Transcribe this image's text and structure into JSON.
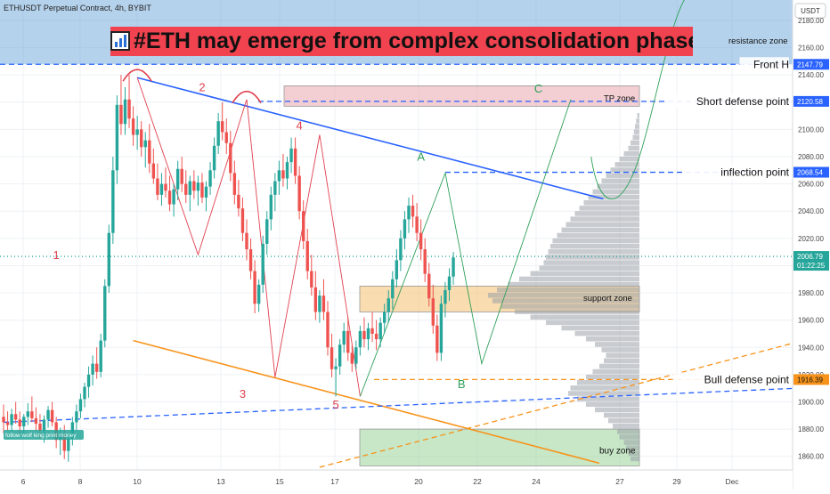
{
  "header": {
    "symbol_line": "ETHUSDT Perpetual Contract, 4h, BYBIT"
  },
  "banner": {
    "text": "#ETH may emerge from complex consolidation phase",
    "icon": "bar-chart-icon",
    "end_icon": "collision-icon"
  },
  "axis": {
    "currency": "USDT"
  },
  "watermark": "follow wolf king print money",
  "chart_data": {
    "type": "candlestick",
    "x_ticks": [
      "6",
      "8",
      "10",
      "13",
      "15",
      "17",
      "20",
      "22",
      "24",
      "27",
      "29",
      "Dec"
    ],
    "y_ticks": [
      1860,
      1880,
      1900,
      1920,
      1940,
      1960,
      1980,
      2000,
      2020,
      2040,
      2060,
      2080,
      2100,
      2120,
      2140,
      2160,
      2180
    ],
    "ylim": [
      1850,
      2195
    ],
    "price_labels": [
      {
        "value": "2147.79",
        "label": "Front H",
        "color": "#2962ff"
      },
      {
        "value": "2120.58",
        "label": "Short defense point",
        "color": "#2962ff"
      },
      {
        "value": "2068.54",
        "label": "inflection point",
        "color": "#2962ff"
      },
      {
        "value": "2006.79",
        "time": "01:22:25",
        "color": "#26a69a"
      },
      {
        "value": "1916.39",
        "label": "Bull defense point",
        "color": "#f7931a"
      }
    ],
    "zones": [
      {
        "label": "resistance zone",
        "from": 2147.79,
        "to": 2200,
        "color": "#5b9bd5"
      },
      {
        "label": "TP zone",
        "from": 2117,
        "to": 2132,
        "color": "#e8a0a8"
      },
      {
        "label": "support zone",
        "from": 1966,
        "to": 1985,
        "color": "#f5c47a"
      },
      {
        "label": "buy zone",
        "from": 1853,
        "to": 1880,
        "color": "#8fcf8f"
      }
    ],
    "wave_labels": [
      {
        "text": "1",
        "x": 13,
        "y": 2005,
        "color": "#e0404f"
      },
      {
        "text": "2",
        "x": 49,
        "y": 2128,
        "color": "#e0404f"
      },
      {
        "text": "3",
        "x": 59,
        "y": 1903,
        "color": "#e0404f"
      },
      {
        "text": "4",
        "x": 73,
        "y": 2100,
        "color": "#e0404f"
      },
      {
        "text": "5",
        "x": 82,
        "y": 1895,
        "color": "#e0404f"
      },
      {
        "text": "A",
        "x": 103,
        "y": 2077,
        "color": "#2ea05a"
      },
      {
        "text": "B",
        "x": 113,
        "y": 1910,
        "color": "#2ea05a"
      },
      {
        "text": "C",
        "x": 132,
        "y": 2127,
        "color": "#2ea05a"
      }
    ],
    "candles": [
      {
        "o": 1889,
        "h": 1898,
        "l": 1877,
        "c": 1885
      },
      {
        "o": 1885,
        "h": 1893,
        "l": 1879,
        "c": 1883
      },
      {
        "o": 1883,
        "h": 1895,
        "l": 1878,
        "c": 1891
      },
      {
        "o": 1891,
        "h": 1900,
        "l": 1884,
        "c": 1887
      },
      {
        "o": 1887,
        "h": 1893,
        "l": 1876,
        "c": 1882
      },
      {
        "o": 1882,
        "h": 1891,
        "l": 1875,
        "c": 1889
      },
      {
        "o": 1889,
        "h": 1899,
        "l": 1883,
        "c": 1893
      },
      {
        "o": 1893,
        "h": 1904,
        "l": 1885,
        "c": 1888
      },
      {
        "o": 1888,
        "h": 1896,
        "l": 1879,
        "c": 1884
      },
      {
        "o": 1884,
        "h": 1891,
        "l": 1873,
        "c": 1879
      },
      {
        "o": 1879,
        "h": 1890,
        "l": 1870,
        "c": 1887
      },
      {
        "o": 1887,
        "h": 1897,
        "l": 1881,
        "c": 1894
      },
      {
        "o": 1894,
        "h": 1900,
        "l": 1882,
        "c": 1885
      },
      {
        "o": 1885,
        "h": 1889,
        "l": 1866,
        "c": 1872
      },
      {
        "o": 1872,
        "h": 1881,
        "l": 1861,
        "c": 1876
      },
      {
        "o": 1876,
        "h": 1883,
        "l": 1858,
        "c": 1864
      },
      {
        "o": 1864,
        "h": 1877,
        "l": 1856,
        "c": 1873
      },
      {
        "o": 1873,
        "h": 1889,
        "l": 1868,
        "c": 1885
      },
      {
        "o": 1885,
        "h": 1898,
        "l": 1879,
        "c": 1893
      },
      {
        "o": 1893,
        "h": 1906,
        "l": 1888,
        "c": 1902
      },
      {
        "o": 1902,
        "h": 1914,
        "l": 1896,
        "c": 1911
      },
      {
        "o": 1911,
        "h": 1926,
        "l": 1903,
        "c": 1920
      },
      {
        "o": 1920,
        "h": 1934,
        "l": 1912,
        "c": 1928
      },
      {
        "o": 1928,
        "h": 1940,
        "l": 1917,
        "c": 1922
      },
      {
        "o": 1922,
        "h": 1950,
        "l": 1918,
        "c": 1945
      },
      {
        "o": 1945,
        "h": 1990,
        "l": 1940,
        "c": 1985
      },
      {
        "o": 1985,
        "h": 2030,
        "l": 1980,
        "c": 2024
      },
      {
        "o": 2024,
        "h": 2080,
        "l": 2016,
        "c": 2070
      },
      {
        "o": 2070,
        "h": 2125,
        "l": 2060,
        "c": 2118
      },
      {
        "o": 2118,
        "h": 2140,
        "l": 2096,
        "c": 2104
      },
      {
        "o": 2104,
        "h": 2131,
        "l": 2096,
        "c": 2122
      },
      {
        "o": 2122,
        "h": 2140,
        "l": 2101,
        "c": 2108
      },
      {
        "o": 2108,
        "h": 2117,
        "l": 2088,
        "c": 2096
      },
      {
        "o": 2096,
        "h": 2110,
        "l": 2085,
        "c": 2100
      },
      {
        "o": 2100,
        "h": 2106,
        "l": 2080,
        "c": 2087
      },
      {
        "o": 2087,
        "h": 2098,
        "l": 2072,
        "c": 2092
      },
      {
        "o": 2092,
        "h": 2104,
        "l": 2068,
        "c": 2075
      },
      {
        "o": 2075,
        "h": 2086,
        "l": 2060,
        "c": 2064
      },
      {
        "o": 2064,
        "h": 2075,
        "l": 2048,
        "c": 2052
      },
      {
        "o": 2052,
        "h": 2068,
        "l": 2044,
        "c": 2060
      },
      {
        "o": 2060,
        "h": 2072,
        "l": 2050,
        "c": 2055
      },
      {
        "o": 2055,
        "h": 2066,
        "l": 2040,
        "c": 2045
      },
      {
        "o": 2045,
        "h": 2060,
        "l": 2036,
        "c": 2056
      },
      {
        "o": 2056,
        "h": 2077,
        "l": 2048,
        "c": 2071
      },
      {
        "o": 2071,
        "h": 2080,
        "l": 2054,
        "c": 2060
      },
      {
        "o": 2060,
        "h": 2070,
        "l": 2046,
        "c": 2052
      },
      {
        "o": 2052,
        "h": 2066,
        "l": 2040,
        "c": 2062
      },
      {
        "o": 2062,
        "h": 2070,
        "l": 2049,
        "c": 2055
      },
      {
        "o": 2055,
        "h": 2066,
        "l": 2044,
        "c": 2061
      },
      {
        "o": 2061,
        "h": 2068,
        "l": 2046,
        "c": 2050
      },
      {
        "o": 2050,
        "h": 2062,
        "l": 2040,
        "c": 2058
      },
      {
        "o": 2058,
        "h": 2076,
        "l": 2052,
        "c": 2070
      },
      {
        "o": 2070,
        "h": 2094,
        "l": 2064,
        "c": 2088
      },
      {
        "o": 2088,
        "h": 2112,
        "l": 2082,
        "c": 2106
      },
      {
        "o": 2106,
        "h": 2120,
        "l": 2092,
        "c": 2098
      },
      {
        "o": 2098,
        "h": 2108,
        "l": 2082,
        "c": 2090
      },
      {
        "o": 2090,
        "h": 2099,
        "l": 2062,
        "c": 2068
      },
      {
        "o": 2068,
        "h": 2077,
        "l": 2045,
        "c": 2052
      },
      {
        "o": 2052,
        "h": 2063,
        "l": 2036,
        "c": 2042
      },
      {
        "o": 2042,
        "h": 2050,
        "l": 2018,
        "c": 2024
      },
      {
        "o": 2024,
        "h": 2034,
        "l": 2004,
        "c": 2012
      },
      {
        "o": 2012,
        "h": 2020,
        "l": 1990,
        "c": 1996
      },
      {
        "o": 1996,
        "h": 2004,
        "l": 1965,
        "c": 1972
      },
      {
        "o": 1972,
        "h": 1990,
        "l": 1966,
        "c": 1986
      },
      {
        "o": 1986,
        "h": 2022,
        "l": 1980,
        "c": 2016
      },
      {
        "o": 2016,
        "h": 2040,
        "l": 2008,
        "c": 2034
      },
      {
        "o": 2034,
        "h": 2058,
        "l": 2026,
        "c": 2052
      },
      {
        "o": 2052,
        "h": 2068,
        "l": 2040,
        "c": 2062
      },
      {
        "o": 2062,
        "h": 2077,
        "l": 2052,
        "c": 2070
      },
      {
        "o": 2070,
        "h": 2082,
        "l": 2058,
        "c": 2064
      },
      {
        "o": 2064,
        "h": 2080,
        "l": 2056,
        "c": 2076
      },
      {
        "o": 2076,
        "h": 2094,
        "l": 2068,
        "c": 2086
      },
      {
        "o": 2086,
        "h": 2094,
        "l": 2060,
        "c": 2066
      },
      {
        "o": 2066,
        "h": 2073,
        "l": 2034,
        "c": 2040
      },
      {
        "o": 2040,
        "h": 2048,
        "l": 2012,
        "c": 2018
      },
      {
        "o": 2018,
        "h": 2027,
        "l": 1990,
        "c": 1996
      },
      {
        "o": 1996,
        "h": 2008,
        "l": 1978,
        "c": 1984
      },
      {
        "o": 1984,
        "h": 1996,
        "l": 1960,
        "c": 1966
      },
      {
        "o": 1966,
        "h": 1982,
        "l": 1958,
        "c": 1978
      },
      {
        "o": 1978,
        "h": 1990,
        "l": 1960,
        "c": 1966
      },
      {
        "o": 1966,
        "h": 1974,
        "l": 1934,
        "c": 1940
      },
      {
        "o": 1940,
        "h": 1950,
        "l": 1918,
        "c": 1924
      },
      {
        "o": 1924,
        "h": 1932,
        "l": 1904,
        "c": 1926
      },
      {
        "o": 1926,
        "h": 1946,
        "l": 1920,
        "c": 1942
      },
      {
        "o": 1942,
        "h": 1958,
        "l": 1936,
        "c": 1952
      },
      {
        "o": 1952,
        "h": 1962,
        "l": 1930,
        "c": 1936
      },
      {
        "o": 1936,
        "h": 1942,
        "l": 1922,
        "c": 1928
      },
      {
        "o": 1928,
        "h": 1945,
        "l": 1924,
        "c": 1940
      },
      {
        "o": 1940,
        "h": 1956,
        "l": 1934,
        "c": 1952
      },
      {
        "o": 1952,
        "h": 1962,
        "l": 1940,
        "c": 1946
      },
      {
        "o": 1946,
        "h": 1958,
        "l": 1938,
        "c": 1954
      },
      {
        "o": 1954,
        "h": 1966,
        "l": 1944,
        "c": 1950
      },
      {
        "o": 1950,
        "h": 1960,
        "l": 1938,
        "c": 1946
      },
      {
        "o": 1946,
        "h": 1962,
        "l": 1940,
        "c": 1958
      },
      {
        "o": 1958,
        "h": 1972,
        "l": 1950,
        "c": 1966
      },
      {
        "o": 1966,
        "h": 1982,
        "l": 1958,
        "c": 1976
      },
      {
        "o": 1976,
        "h": 1996,
        "l": 1968,
        "c": 1990
      },
      {
        "o": 1990,
        "h": 2012,
        "l": 1984,
        "c": 2004
      },
      {
        "o": 2004,
        "h": 2026,
        "l": 1996,
        "c": 2020
      },
      {
        "o": 2020,
        "h": 2040,
        "l": 2012,
        "c": 2034
      },
      {
        "o": 2034,
        "h": 2050,
        "l": 2024,
        "c": 2044
      },
      {
        "o": 2044,
        "h": 2052,
        "l": 2028,
        "c": 2036
      },
      {
        "o": 2036,
        "h": 2046,
        "l": 2018,
        "c": 2024
      },
      {
        "o": 2024,
        "h": 2034,
        "l": 2004,
        "c": 2012
      },
      {
        "o": 2012,
        "h": 2020,
        "l": 1988,
        "c": 1994
      },
      {
        "o": 1994,
        "h": 2002,
        "l": 1970,
        "c": 1976
      },
      {
        "o": 1976,
        "h": 1986,
        "l": 1950,
        "c": 1956
      },
      {
        "o": 1956,
        "h": 1964,
        "l": 1930,
        "c": 1936
      },
      {
        "o": 1936,
        "h": 1978,
        "l": 1930,
        "c": 1972
      },
      {
        "o": 1972,
        "h": 1988,
        "l": 1962,
        "c": 1982
      },
      {
        "o": 1982,
        "h": 1998,
        "l": 1974,
        "c": 1992
      },
      {
        "o": 1992,
        "h": 2010,
        "l": 1986,
        "c": 2006
      }
    ],
    "volume_profile": {
      "bin_size": 4,
      "from": 1856,
      "weights": [
        8,
        10,
        12,
        14,
        18,
        20,
        24,
        28,
        32,
        40,
        48,
        56,
        64,
        62,
        56,
        48,
        42,
        36,
        32,
        30,
        34,
        40,
        48,
        58,
        70,
        84,
        98,
        112,
        124,
        132,
        136,
        128,
        118,
        108,
        98,
        90,
        86,
        84,
        82,
        80,
        78,
        74,
        70,
        66,
        62,
        58,
        54,
        50,
        46,
        42,
        38,
        34,
        30,
        26,
        22,
        18,
        14,
        10,
        8,
        6,
        5,
        4,
        3,
        2
      ]
    }
  }
}
